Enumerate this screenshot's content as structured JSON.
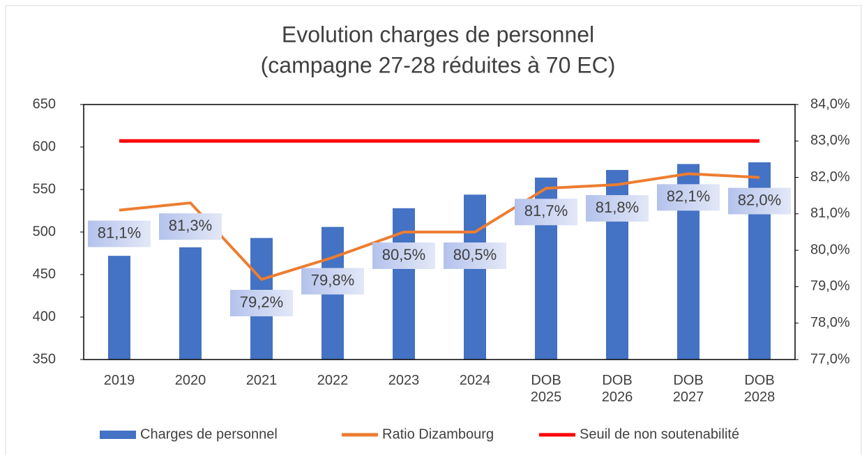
{
  "chart_data": {
    "type": "bar_line",
    "title": "Evolution charges de personnel",
    "subtitle": "(campagne 27-28 réduites à 70 EC)",
    "categories": [
      "2019",
      "2020",
      "2021",
      "2022",
      "2023",
      "2024",
      "DOB 2025",
      "DOB 2026",
      "DOB 2027",
      "DOB 2028"
    ],
    "series": [
      {
        "name": "Charges de personnel",
        "type": "bar",
        "color": "#4472c4",
        "values": [
          472,
          482,
          493,
          506,
          528,
          544,
          564,
          573,
          580,
          582
        ]
      },
      {
        "name": "Ratio Dizambourg",
        "type": "line",
        "axis": "y2",
        "color": "#ed7d31",
        "values": [
          81.1,
          81.3,
          79.2,
          79.8,
          80.5,
          80.5,
          81.7,
          81.8,
          82.1,
          82.0
        ],
        "value_labels": [
          "81,1%",
          "81,3%",
          "79,2%",
          "79,8%",
          "80,5%",
          "80,5%",
          "81,7%",
          "81,8%",
          "82,1%",
          "82,0%"
        ]
      },
      {
        "name": "Seuil de non soutenabilité",
        "type": "line",
        "axis": "y2",
        "color": "#ff0000",
        "values": [
          83,
          83,
          83,
          83,
          83,
          83,
          83,
          83,
          83,
          83
        ]
      }
    ],
    "ylim": [
      350,
      650
    ],
    "yticks": [
      350,
      400,
      450,
      500,
      550,
      600,
      650
    ],
    "y2lim": [
      77,
      84
    ],
    "y2ticks": [
      {
        "value": 77,
        "label": "77,0%"
      },
      {
        "value": 78,
        "label": "78,0%"
      },
      {
        "value": 79,
        "label": "79,0%"
      },
      {
        "value": 80,
        "label": "80,0%"
      },
      {
        "value": 81,
        "label": "81,0%"
      },
      {
        "value": 82,
        "label": "82,0%"
      },
      {
        "value": 83,
        "label": "83,0%"
      },
      {
        "value": 84,
        "label": "84,0%"
      }
    ],
    "legend": "bottom"
  }
}
